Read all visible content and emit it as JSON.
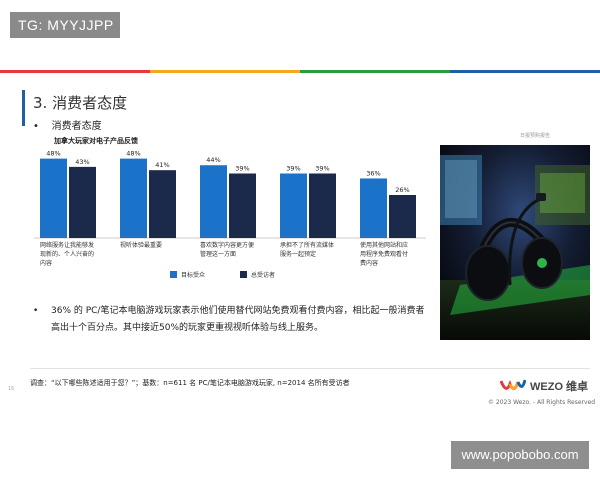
{
  "watermark_top": "TG: MYYJJPP",
  "watermark_bottom": "www.popobobo.com",
  "colors": {
    "stripe": [
      "#e8383d",
      "#f5a623",
      "#2a9d3f",
      "#1f5fa8"
    ],
    "series1": "#1a73c9",
    "series2": "#1b2a4a"
  },
  "slide": {
    "title": "3. 消费者态度",
    "bullet1": "消费者态度",
    "source_mark": "日报预购报告",
    "bullet2_dot": "•",
    "bullet2": "36% 的 PC/笔记本电脑游戏玩家表示他们使用替代网站免费观看付费内容，相比起一般消费者高出十个百分点。其中接近50%的玩家更重视视听体验与线上服务。",
    "page_number": "16",
    "footnote": "调查：“以下哪些陈述适用于您？”；基数：n=611 名 PC/笔记本电脑游戏玩家, n=2014 名所有受访者",
    "logo_text": "WEZO 维卓",
    "copyright": "© 2023 Wezo. - All Rights Reserved"
  },
  "chart_data": {
    "type": "bar",
    "title": "加拿大玩家对电子产品反馈",
    "categories": [
      [
        "网络服务让我能够发",
        "现新的、个人兴奋的",
        "内容"
      ],
      [
        "视听体验最重要"
      ],
      [
        "喜欢数字内容更方便",
        "管理这一方面"
      ],
      [
        "承担不了所有流媒体",
        "服务一起预定"
      ],
      [
        "使用其他网站和应",
        "用程序免费观看付",
        "费内容"
      ]
    ],
    "series": [
      {
        "name": "目标受众",
        "values": [
          48,
          48,
          44,
          39,
          36
        ],
        "labels": [
          "48%",
          "48%",
          "44%",
          "39%",
          "36%"
        ]
      },
      {
        "name": "总受访者",
        "values": [
          43,
          41,
          39,
          39,
          26
        ],
        "labels": [
          "43%",
          "41%",
          "39%",
          "39%",
          "26%"
        ]
      }
    ],
    "ylim": [
      0,
      52
    ],
    "grid": false,
    "legend": "bottom-center"
  }
}
